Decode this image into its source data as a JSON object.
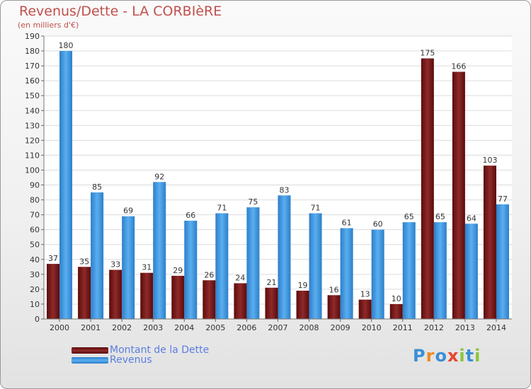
{
  "title": "Revenus/Dette - LA CORBIèRE",
  "subtitle": "(en milliers d'€)",
  "logo": {
    "text": "Proxiti",
    "letter_colors": [
      "#3a8fd6",
      "#f08a24",
      "#3a8fd6",
      "#e8452c",
      "#8cc43c",
      "#3a8fd6",
      "#8cc43c"
    ]
  },
  "colors": {
    "dette": "#7b1010",
    "revenus": "#3d95df",
    "title": "#c0504d",
    "legend_text": "#5b7de0"
  },
  "chart_data": {
    "type": "bar",
    "categories": [
      "2000",
      "2001",
      "2002",
      "2003",
      "2004",
      "2005",
      "2006",
      "2007",
      "2008",
      "2009",
      "2010",
      "2011",
      "2012",
      "2013",
      "2014"
    ],
    "series": [
      {
        "name": "Montant de la Dette",
        "values": [
          37,
          35,
          33,
          31,
          29,
          26,
          24,
          21,
          19,
          16,
          13,
          10,
          175,
          166,
          103
        ]
      },
      {
        "name": "Revenus",
        "values": [
          180,
          85,
          69,
          92,
          66,
          71,
          75,
          83,
          71,
          61,
          60,
          65,
          65,
          64,
          77
        ]
      }
    ],
    "y_ticks": [
      0,
      10,
      20,
      30,
      40,
      50,
      60,
      70,
      80,
      90,
      100,
      110,
      120,
      130,
      140,
      150,
      160,
      170,
      180,
      190
    ],
    "ylim": [
      0,
      190
    ],
    "grid": true,
    "legend_position": "bottom-left"
  }
}
